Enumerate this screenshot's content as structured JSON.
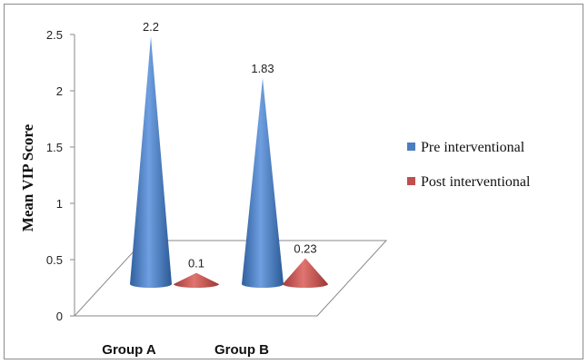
{
  "chart_data": {
    "type": "bar",
    "style": "3d-cone",
    "categories": [
      "Group A",
      "Group B"
    ],
    "series": [
      {
        "name": "Pre interventional",
        "values": [
          2.2,
          1.83
        ],
        "color": "#4a7ebf"
      },
      {
        "name": "Post interventional",
        "values": [
          0.1,
          0.23
        ],
        "color": "#c0504d"
      }
    ],
    "data_labels": [
      [
        "2.2",
        "1.83"
      ],
      [
        "0.1",
        "0.23"
      ]
    ],
    "ylabel": "Mean VIP Score",
    "ylim": [
      0,
      2.5
    ],
    "yticks": [
      0,
      0.5,
      1,
      1.5,
      2,
      2.5
    ],
    "ytick_labels": [
      "0",
      "0.5",
      "1",
      "1.5",
      "2",
      "2.5"
    ],
    "grid": false,
    "legend_position": "right"
  }
}
